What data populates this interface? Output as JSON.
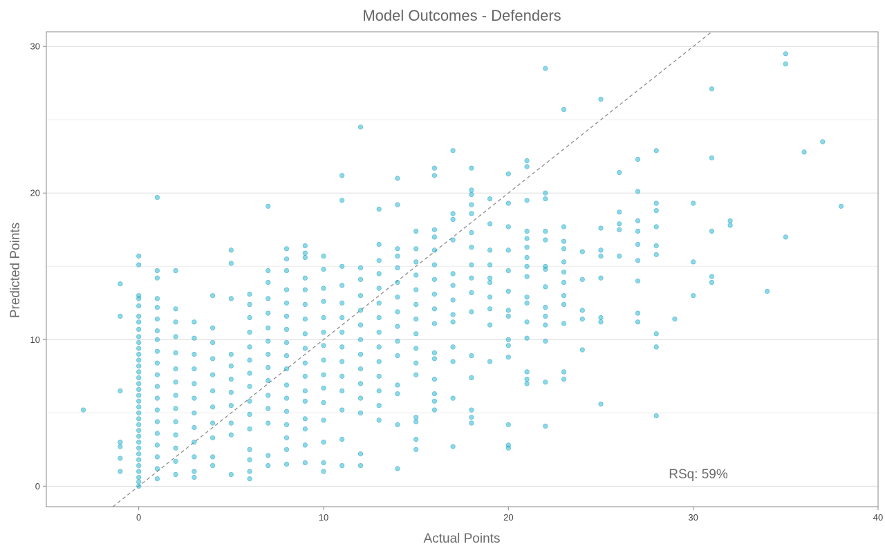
{
  "chart_data": {
    "type": "scatter",
    "title": "Model Outcomes - Defenders",
    "xlabel": "Actual Points",
    "ylabel": "Predicted Points",
    "xlim": [
      -5,
      40
    ],
    "ylim": [
      -1.4,
      31
    ],
    "x_ticks": [
      0,
      10,
      20,
      30,
      40
    ],
    "y_ticks": [
      0,
      10,
      20,
      30
    ],
    "grid": "horizontal major and minor",
    "reference_line": {
      "slope": 1,
      "intercept": 0,
      "style": "dashed"
    },
    "annotation": "RSq: 59%",
    "point_color": "#1ab4d2",
    "points": [
      [
        -3,
        5.2
      ],
      [
        -1,
        13.8
      ],
      [
        -1,
        11.6
      ],
      [
        -1,
        6.5
      ],
      [
        -1,
        3.0
      ],
      [
        -1,
        2.7
      ],
      [
        -1,
        1.9
      ],
      [
        -1,
        1.0
      ],
      [
        0,
        15.7
      ],
      [
        0,
        15.1
      ],
      [
        0,
        13.0
      ],
      [
        0,
        12.8
      ],
      [
        0,
        12.3
      ],
      [
        0,
        11.6
      ],
      [
        0,
        11.2
      ],
      [
        0,
        10.7
      ],
      [
        0,
        10.2
      ],
      [
        0,
        9.8
      ],
      [
        0,
        9.4
      ],
      [
        0,
        9.0
      ],
      [
        0,
        8.6
      ],
      [
        0,
        8.2
      ],
      [
        0,
        7.8
      ],
      [
        0,
        7.4
      ],
      [
        0,
        7.0
      ],
      [
        0,
        6.6
      ],
      [
        0,
        6.2
      ],
      [
        0,
        5.8
      ],
      [
        0,
        5.4
      ],
      [
        0,
        5.0
      ],
      [
        0,
        4.6
      ],
      [
        0,
        4.2
      ],
      [
        0,
        3.8
      ],
      [
        0,
        3.4
      ],
      [
        0,
        3.0
      ],
      [
        0,
        2.6
      ],
      [
        0,
        2.2
      ],
      [
        0,
        1.8
      ],
      [
        0,
        1.4
      ],
      [
        0,
        1.0
      ],
      [
        0,
        0.6
      ],
      [
        0,
        0.3
      ],
      [
        0,
        0.0
      ],
      [
        1,
        19.7
      ],
      [
        1,
        14.7
      ],
      [
        1,
        14.2
      ],
      [
        1,
        12.8
      ],
      [
        1,
        12.2
      ],
      [
        1,
        11.4
      ],
      [
        1,
        10.6
      ],
      [
        1,
        10.0
      ],
      [
        1,
        9.2
      ],
      [
        1,
        8.4
      ],
      [
        1,
        7.6
      ],
      [
        1,
        6.8
      ],
      [
        1,
        6.0
      ],
      [
        1,
        5.2
      ],
      [
        1,
        4.4
      ],
      [
        1,
        3.6
      ],
      [
        1,
        2.8
      ],
      [
        1,
        2.0
      ],
      [
        1,
        1.2
      ],
      [
        1,
        0.5
      ],
      [
        2,
        14.7
      ],
      [
        2,
        12.1
      ],
      [
        2,
        11.2
      ],
      [
        2,
        10.2
      ],
      [
        2,
        9.1
      ],
      [
        2,
        8.0
      ],
      [
        2,
        7.1
      ],
      [
        2,
        6.2
      ],
      [
        2,
        5.3
      ],
      [
        2,
        4.4
      ],
      [
        2,
        3.5
      ],
      [
        2,
        2.6
      ],
      [
        2,
        1.7
      ],
      [
        2,
        0.8
      ],
      [
        3,
        11.2
      ],
      [
        3,
        10.1
      ],
      [
        3,
        9.0
      ],
      [
        3,
        8.0
      ],
      [
        3,
        7.0
      ],
      [
        3,
        6.0
      ],
      [
        3,
        5.0
      ],
      [
        3,
        4.0
      ],
      [
        3,
        3.0
      ],
      [
        3,
        2.0
      ],
      [
        3,
        1.0
      ],
      [
        3,
        0.6
      ],
      [
        4,
        13.0
      ],
      [
        4,
        10.8
      ],
      [
        4,
        9.8
      ],
      [
        4,
        8.7
      ],
      [
        4,
        7.6
      ],
      [
        4,
        6.5
      ],
      [
        4,
        5.4
      ],
      [
        4,
        4.3
      ],
      [
        4,
        3.3
      ],
      [
        4,
        2.0
      ],
      [
        4,
        1.4
      ],
      [
        5,
        16.1
      ],
      [
        5,
        15.2
      ],
      [
        5,
        12.8
      ],
      [
        5,
        9.0
      ],
      [
        5,
        8.2
      ],
      [
        5,
        7.3
      ],
      [
        5,
        6.4
      ],
      [
        5,
        5.5
      ],
      [
        5,
        4.3
      ],
      [
        5,
        3.5
      ],
      [
        5,
        0.8
      ],
      [
        6,
        13.1
      ],
      [
        6,
        12.4
      ],
      [
        6,
        11.5
      ],
      [
        6,
        10.5
      ],
      [
        6,
        9.5
      ],
      [
        6,
        8.6
      ],
      [
        6,
        7.7
      ],
      [
        6,
        6.8
      ],
      [
        6,
        5.8
      ],
      [
        6,
        4.9
      ],
      [
        6,
        3.9
      ],
      [
        6,
        2.5
      ],
      [
        6,
        1.8
      ],
      [
        6,
        1.0
      ],
      [
        6,
        0.5
      ],
      [
        7,
        19.1
      ],
      [
        7,
        14.7
      ],
      [
        7,
        13.9
      ],
      [
        7,
        12.8
      ],
      [
        7,
        11.8
      ],
      [
        7,
        10.8
      ],
      [
        7,
        9.9
      ],
      [
        7,
        9.0
      ],
      [
        7,
        8.1
      ],
      [
        7,
        7.2
      ],
      [
        7,
        6.2
      ],
      [
        7,
        5.3
      ],
      [
        7,
        4.3
      ],
      [
        7,
        2.1
      ],
      [
        7,
        1.4
      ],
      [
        8,
        16.2
      ],
      [
        8,
        15.5
      ],
      [
        8,
        14.7
      ],
      [
        8,
        13.4
      ],
      [
        8,
        12.5
      ],
      [
        8,
        11.6
      ],
      [
        8,
        10.7
      ],
      [
        8,
        9.8
      ],
      [
        8,
        8.9
      ],
      [
        8,
        8.0
      ],
      [
        8,
        6.9
      ],
      [
        8,
        6.0
      ],
      [
        8,
        5.1
      ],
      [
        8,
        4.2
      ],
      [
        8,
        3.3
      ],
      [
        8,
        2.5
      ],
      [
        8,
        1.5
      ],
      [
        9,
        16.4
      ],
      [
        9,
        15.9
      ],
      [
        9,
        15.6
      ],
      [
        9,
        14.2
      ],
      [
        9,
        13.4
      ],
      [
        9,
        12.4
      ],
      [
        9,
        11.4
      ],
      [
        9,
        10.4
      ],
      [
        9,
        9.4
      ],
      [
        9,
        8.4
      ],
      [
        9,
        7.5
      ],
      [
        9,
        6.5
      ],
      [
        9,
        5.8
      ],
      [
        9,
        4.6
      ],
      [
        9,
        3.9
      ],
      [
        9,
        2.8
      ],
      [
        9,
        1.6
      ],
      [
        10,
        15.7
      ],
      [
        10,
        14.8
      ],
      [
        10,
        13.5
      ],
      [
        10,
        12.6
      ],
      [
        10,
        11.5
      ],
      [
        10,
        10.5
      ],
      [
        10,
        9.6
      ],
      [
        10,
        8.6
      ],
      [
        10,
        7.6
      ],
      [
        10,
        6.7
      ],
      [
        10,
        5.7
      ],
      [
        10,
        4.5
      ],
      [
        10,
        3.0
      ],
      [
        10,
        1.6
      ],
      [
        10,
        1.0
      ],
      [
        11,
        21.2
      ],
      [
        11,
        19.5
      ],
      [
        11,
        15.0
      ],
      [
        11,
        13.7
      ],
      [
        11,
        12.5
      ],
      [
        11,
        11.5
      ],
      [
        11,
        10.5
      ],
      [
        11,
        9.5
      ],
      [
        11,
        8.5
      ],
      [
        11,
        7.5
      ],
      [
        11,
        6.5
      ],
      [
        11,
        5.2
      ],
      [
        11,
        3.2
      ],
      [
        11,
        1.4
      ],
      [
        12,
        24.5
      ],
      [
        12,
        14.9
      ],
      [
        12,
        14.1
      ],
      [
        12,
        13.0
      ],
      [
        12,
        12.0
      ],
      [
        12,
        11.0
      ],
      [
        12,
        10.0
      ],
      [
        12,
        9.0
      ],
      [
        12,
        8.0
      ],
      [
        12,
        7.0
      ],
      [
        12,
        6.0
      ],
      [
        12,
        5.0
      ],
      [
        12,
        2.2
      ],
      [
        12,
        1.4
      ],
      [
        13,
        18.9
      ],
      [
        13,
        16.5
      ],
      [
        13,
        15.4
      ],
      [
        13,
        14.5
      ],
      [
        13,
        13.5
      ],
      [
        13,
        12.5
      ],
      [
        13,
        11.5
      ],
      [
        13,
        10.5
      ],
      [
        13,
        9.5
      ],
      [
        13,
        8.5
      ],
      [
        13,
        7.5
      ],
      [
        13,
        6.5
      ],
      [
        13,
        5.5
      ],
      [
        13,
        4.5
      ],
      [
        14,
        21.0
      ],
      [
        14,
        19.2
      ],
      [
        14,
        16.2
      ],
      [
        14,
        15.7
      ],
      [
        14,
        14.9
      ],
      [
        14,
        13.9
      ],
      [
        14,
        12.9
      ],
      [
        14,
        11.9
      ],
      [
        14,
        10.9
      ],
      [
        14,
        9.9
      ],
      [
        14,
        8.9
      ],
      [
        14,
        6.9
      ],
      [
        14,
        6.3
      ],
      [
        14,
        4.2
      ],
      [
        14,
        1.2
      ],
      [
        15,
        17.4
      ],
      [
        15,
        16.2
      ],
      [
        15,
        15.3
      ],
      [
        15,
        14.4
      ],
      [
        15,
        13.4
      ],
      [
        15,
        12.4
      ],
      [
        15,
        11.4
      ],
      [
        15,
        10.4
      ],
      [
        15,
        9.4
      ],
      [
        15,
        8.4
      ],
      [
        15,
        7.6
      ],
      [
        15,
        4.7
      ],
      [
        15,
        4.4
      ],
      [
        15,
        3.2
      ],
      [
        15,
        2.5
      ],
      [
        16,
        21.7
      ],
      [
        16,
        21.2
      ],
      [
        16,
        17.5
      ],
      [
        16,
        17.0
      ],
      [
        16,
        16.1
      ],
      [
        16,
        15.1
      ],
      [
        16,
        14.1
      ],
      [
        16,
        13.1
      ],
      [
        16,
        12.1
      ],
      [
        16,
        11.1
      ],
      [
        16,
        9.1
      ],
      [
        16,
        8.7
      ],
      [
        16,
        7.3
      ],
      [
        16,
        6.3
      ],
      [
        16,
        5.8
      ],
      [
        16,
        5.2
      ],
      [
        17,
        22.9
      ],
      [
        17,
        18.6
      ],
      [
        17,
        18.2
      ],
      [
        17,
        16.8
      ],
      [
        17,
        14.5
      ],
      [
        17,
        13.7
      ],
      [
        17,
        12.7
      ],
      [
        17,
        11.7
      ],
      [
        17,
        11.2
      ],
      [
        17,
        9.5
      ],
      [
        17,
        8.5
      ],
      [
        17,
        6.0
      ],
      [
        17,
        2.7
      ],
      [
        18,
        21.7
      ],
      [
        18,
        20.2
      ],
      [
        18,
        19.9
      ],
      [
        18,
        19.2
      ],
      [
        18,
        18.6
      ],
      [
        18,
        17.3
      ],
      [
        18,
        16.3
      ],
      [
        18,
        15.1
      ],
      [
        18,
        14.2
      ],
      [
        18,
        13.2
      ],
      [
        18,
        11.9
      ],
      [
        18,
        8.9
      ],
      [
        18,
        7.4
      ],
      [
        18,
        5.2
      ],
      [
        18,
        4.7
      ],
      [
        18,
        4.3
      ],
      [
        19,
        19.6
      ],
      [
        19,
        17.9
      ],
      [
        19,
        16.1
      ],
      [
        19,
        15.1
      ],
      [
        19,
        14.2
      ],
      [
        19,
        13.9
      ],
      [
        19,
        12.9
      ],
      [
        19,
        12.1
      ],
      [
        19,
        11.0
      ],
      [
        19,
        8.5
      ],
      [
        20,
        21.3
      ],
      [
        20,
        19.3
      ],
      [
        20,
        17.7
      ],
      [
        20,
        16.1
      ],
      [
        20,
        14.7
      ],
      [
        20,
        13.3
      ],
      [
        20,
        12.0
      ],
      [
        20,
        11.6
      ],
      [
        20,
        10.0
      ],
      [
        20,
        9.6
      ],
      [
        20,
        8.8
      ],
      [
        20,
        4.2
      ],
      [
        20,
        2.8
      ],
      [
        20,
        2.6
      ],
      [
        21,
        22.2
      ],
      [
        21,
        21.8
      ],
      [
        21,
        19.5
      ],
      [
        21,
        17.4
      ],
      [
        21,
        16.9
      ],
      [
        21,
        16.3
      ],
      [
        21,
        15.6
      ],
      [
        21,
        15.0
      ],
      [
        21,
        14.3
      ],
      [
        21,
        12.9
      ],
      [
        21,
        12.5
      ],
      [
        21,
        11.2
      ],
      [
        21,
        10.1
      ],
      [
        21,
        7.8
      ],
      [
        21,
        7.3
      ],
      [
        21,
        7.0
      ],
      [
        22,
        28.5
      ],
      [
        22,
        20.0
      ],
      [
        22,
        19.6
      ],
      [
        22,
        17.4
      ],
      [
        22,
        16.8
      ],
      [
        22,
        15.0
      ],
      [
        22,
        14.8
      ],
      [
        22,
        13.6
      ],
      [
        22,
        12.2
      ],
      [
        22,
        11.6
      ],
      [
        22,
        11.0
      ],
      [
        22,
        9.9
      ],
      [
        22,
        7.1
      ],
      [
        22,
        4.1
      ],
      [
        23,
        25.7
      ],
      [
        23,
        17.7
      ],
      [
        23,
        16.7
      ],
      [
        23,
        16.2
      ],
      [
        23,
        15.3
      ],
      [
        23,
        14.6
      ],
      [
        23,
        13.9
      ],
      [
        23,
        13.0
      ],
      [
        23,
        12.4
      ],
      [
        23,
        11.1
      ],
      [
        23,
        7.8
      ],
      [
        23,
        7.3
      ],
      [
        24,
        16.0
      ],
      [
        24,
        14.1
      ],
      [
        24,
        12.0
      ],
      [
        24,
        11.4
      ],
      [
        24,
        9.3
      ],
      [
        25,
        26.4
      ],
      [
        25,
        17.6
      ],
      [
        25,
        16.1
      ],
      [
        25,
        15.7
      ],
      [
        25,
        14.2
      ],
      [
        25,
        11.5
      ],
      [
        25,
        11.2
      ],
      [
        25,
        5.6
      ],
      [
        26,
        21.4
      ],
      [
        26,
        18.7
      ],
      [
        26,
        17.9
      ],
      [
        26,
        17.5
      ],
      [
        26,
        15.7
      ],
      [
        27,
        22.3
      ],
      [
        27,
        20.1
      ],
      [
        27,
        18.1
      ],
      [
        27,
        17.4
      ],
      [
        27,
        16.5
      ],
      [
        27,
        15.4
      ],
      [
        27,
        14.0
      ],
      [
        27,
        11.8
      ],
      [
        27,
        11.2
      ],
      [
        28,
        22.9
      ],
      [
        28,
        19.3
      ],
      [
        28,
        18.8
      ],
      [
        28,
        17.7
      ],
      [
        28,
        16.4
      ],
      [
        28,
        15.8
      ],
      [
        28,
        10.4
      ],
      [
        28,
        9.5
      ],
      [
        28,
        4.8
      ],
      [
        29,
        11.4
      ],
      [
        30,
        19.3
      ],
      [
        30,
        15.3
      ],
      [
        30,
        13.0
      ],
      [
        31,
        27.1
      ],
      [
        31,
        22.4
      ],
      [
        31,
        17.4
      ],
      [
        31,
        14.3
      ],
      [
        31,
        13.9
      ],
      [
        32,
        18.1
      ],
      [
        32,
        17.8
      ],
      [
        34,
        13.3
      ],
      [
        35,
        29.5
      ],
      [
        35,
        28.8
      ],
      [
        35,
        17.0
      ],
      [
        36,
        22.8
      ],
      [
        37,
        23.5
      ],
      [
        38,
        19.1
      ]
    ]
  }
}
